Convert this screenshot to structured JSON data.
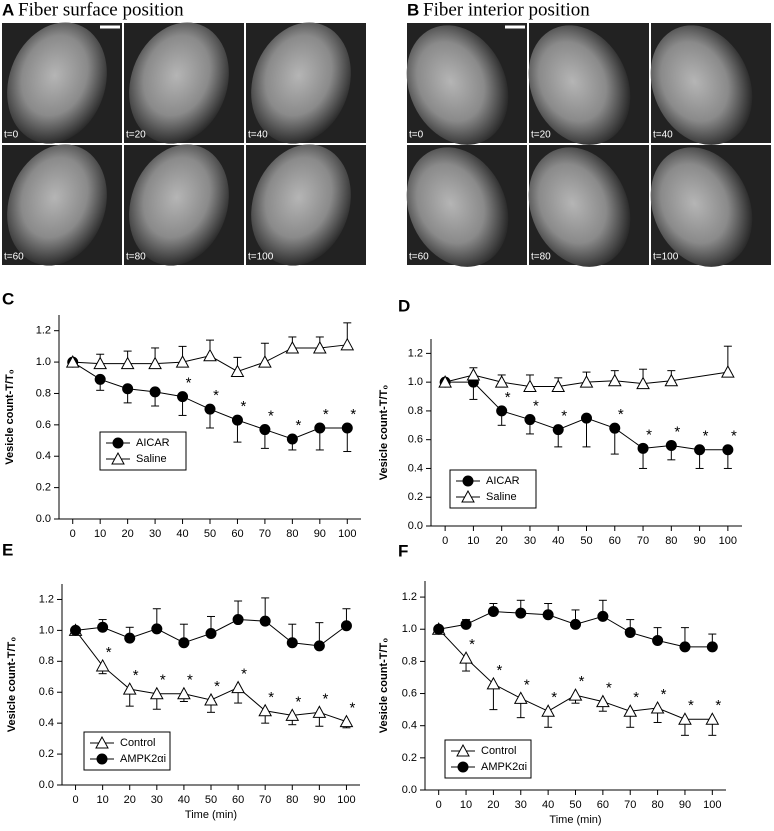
{
  "image_panels": [
    {
      "label": "A",
      "title": "Fiber surface position",
      "frames": [
        "t=0",
        "t=20",
        "t=40",
        "t=60",
        "t=80",
        "t=100"
      ]
    },
    {
      "label": "B",
      "title": "Fiber interior position",
      "frames": [
        "t=0",
        "t=20",
        "t=40",
        "t=60",
        "t=80",
        "t=100"
      ]
    }
  ],
  "chart_data": [
    {
      "type": "line",
      "panel": "C",
      "ylabel": "Vesicle count-T/T₀",
      "legend": "lower left",
      "sig_label": "*",
      "x": [
        0,
        10,
        20,
        30,
        40,
        50,
        60,
        70,
        80,
        90,
        100
      ],
      "xlim": [
        -5,
        105
      ],
      "xticks": [
        0,
        10,
        20,
        30,
        40,
        50,
        60,
        70,
        80,
        90,
        100
      ],
      "ylim": [
        0,
        1.3
      ],
      "yticks": [
        {
          "value": 0,
          "label": "0.0"
        },
        {
          "value": 0.2,
          "label": "0.2"
        },
        {
          "value": 0.4,
          "label": "0.4"
        },
        {
          "value": 0.6,
          "label": "0.6"
        },
        {
          "value": 0.8,
          "label": "0.8"
        },
        {
          "value": 1,
          "label": "1.0"
        },
        {
          "value": 1.2,
          "label": "1.2"
        }
      ],
      "series": [
        {
          "name": "AICAR",
          "color": "#000000",
          "marker": "circle",
          "marker_fill": "#000000",
          "error_direction": "down",
          "values": [
            1.0,
            0.89,
            0.83,
            0.81,
            0.78,
            0.7,
            0.63,
            0.57,
            0.51,
            0.58,
            0.58
          ],
          "errors": [
            0,
            0.07,
            0.09,
            0.09,
            0.12,
            0.12,
            0.14,
            0.12,
            0.07,
            0.14,
            0.15
          ],
          "significant_x": [
            40,
            50,
            60,
            70,
            80,
            90,
            100
          ]
        },
        {
          "name": "Saline",
          "color": "#000000",
          "marker": "triangle",
          "marker_fill": "#ffffff",
          "error_direction": "up",
          "values": [
            1.0,
            0.99,
            0.99,
            0.99,
            1.0,
            1.04,
            0.94,
            1.0,
            1.09,
            1.09,
            1.11
          ],
          "errors": [
            0.02,
            0.06,
            0.08,
            0.1,
            0.1,
            0.1,
            0.09,
            0.12,
            0.07,
            0.07,
            0.14
          ]
        }
      ]
    },
    {
      "type": "line",
      "panel": "D",
      "ylabel": "Vesicle count-T/T₀",
      "legend": "lower left",
      "sig_label": "*",
      "x": [
        0,
        10,
        20,
        30,
        40,
        50,
        60,
        70,
        80,
        90,
        100
      ],
      "xlim": [
        -5,
        105
      ],
      "xticks": [
        0,
        10,
        20,
        30,
        40,
        50,
        60,
        70,
        80,
        90,
        100
      ],
      "ylim": [
        0,
        1.3
      ],
      "yticks": [
        {
          "value": 0,
          "label": "0.0"
        },
        {
          "value": 0.2,
          "label": "0.2"
        },
        {
          "value": 0.4,
          "label": "0.4"
        },
        {
          "value": 0.6,
          "label": "0.6"
        },
        {
          "value": 0.8,
          "label": "0.8"
        },
        {
          "value": 1,
          "label": "1.0"
        },
        {
          "value": 1.2,
          "label": "1.2"
        }
      ],
      "series": [
        {
          "name": "AICAR",
          "color": "#000000",
          "marker": "circle",
          "marker_fill": "#000000",
          "error_direction": "down",
          "values": [
            1.0,
            1.0,
            0.8,
            0.74,
            0.67,
            0.75,
            0.68,
            0.54,
            0.56,
            0.53,
            0.53
          ],
          "errors": [
            0,
            0.12,
            0.1,
            0.1,
            0.12,
            0.2,
            0.18,
            0.14,
            0.1,
            0.13,
            0.13
          ],
          "significant_x": [
            20,
            30,
            40,
            60,
            70,
            80,
            90,
            100
          ]
        },
        {
          "name": "Saline",
          "color": "#000000",
          "marker": "triangle",
          "marker_fill": "#ffffff",
          "error_direction": "up",
          "x": [
            0,
            10,
            20,
            30,
            40,
            50,
            60,
            70,
            80,
            100
          ],
          "values": [
            1.0,
            1.05,
            1.0,
            0.97,
            0.97,
            1.0,
            1.01,
            0.99,
            1.01,
            1.07
          ],
          "errors": [
            0.02,
            0.05,
            0.05,
            0.08,
            0.06,
            0.07,
            0.07,
            0.1,
            0.07,
            0.18
          ]
        }
      ]
    },
    {
      "type": "line",
      "panel": "E",
      "ylabel": "Vesicle count-T/T₀",
      "xlabel": "Time (min)",
      "legend": "lower left",
      "sig_label": "*",
      "x": [
        0,
        10,
        20,
        30,
        40,
        50,
        60,
        70,
        80,
        90,
        100
      ],
      "xlim": [
        -5,
        105
      ],
      "xticks": [
        0,
        10,
        20,
        30,
        40,
        50,
        60,
        70,
        80,
        90,
        100
      ],
      "ylim": [
        0,
        1.3
      ],
      "yticks": [
        {
          "value": 0,
          "label": "0.0"
        },
        {
          "value": 0.2,
          "label": "0.2"
        },
        {
          "value": 0.4,
          "label": "0.4"
        },
        {
          "value": 0.6,
          "label": "0.6"
        },
        {
          "value": 0.8,
          "label": "0.8"
        },
        {
          "value": 1,
          "label": "1.0"
        },
        {
          "value": 1.2,
          "label": "1.2"
        }
      ],
      "series": [
        {
          "name": "Control",
          "color": "#000000",
          "marker": "triangle",
          "marker_fill": "#ffffff",
          "error_direction": "down",
          "values": [
            1.0,
            0.77,
            0.62,
            0.59,
            0.59,
            0.55,
            0.63,
            0.48,
            0.45,
            0.47,
            0.41
          ],
          "errors": [
            0,
            0.05,
            0.11,
            0.1,
            0.05,
            0.08,
            0.1,
            0.08,
            0.06,
            0.09,
            0.04
          ],
          "significant_x": [
            10,
            20,
            30,
            40,
            50,
            60,
            70,
            80,
            90,
            100
          ]
        },
        {
          "name": "AMPK2αi",
          "color": "#000000",
          "marker": "circle",
          "marker_fill": "#000000",
          "error_direction": "up",
          "values": [
            1.0,
            1.02,
            0.95,
            1.01,
            0.92,
            0.98,
            1.07,
            1.06,
            0.92,
            0.9,
            1.03
          ],
          "errors": [
            0.01,
            0.05,
            0.07,
            0.13,
            0.12,
            0.11,
            0.12,
            0.15,
            0.12,
            0.15,
            0.11
          ]
        }
      ]
    },
    {
      "type": "line",
      "panel": "F",
      "ylabel": "Vesicle count-T/T₀",
      "xlabel": "Time (min)",
      "legend": "lower left",
      "sig_label": "*",
      "x": [
        0,
        10,
        20,
        30,
        40,
        50,
        60,
        70,
        80,
        90,
        100
      ],
      "xlim": [
        -5,
        105
      ],
      "xticks": [
        0,
        10,
        20,
        30,
        40,
        50,
        60,
        70,
        80,
        90,
        100
      ],
      "ylim": [
        0,
        1.3
      ],
      "yticks": [
        {
          "value": 0,
          "label": "0.0"
        },
        {
          "value": 0.2,
          "label": "0.2"
        },
        {
          "value": 0.4,
          "label": "0.4"
        },
        {
          "value": 0.6,
          "label": "0.6"
        },
        {
          "value": 0.8,
          "label": "0.8"
        },
        {
          "value": 1,
          "label": "1.0"
        },
        {
          "value": 1.2,
          "label": "1.2"
        }
      ],
      "series": [
        {
          "name": "Control",
          "color": "#000000",
          "marker": "triangle",
          "marker_fill": "#ffffff",
          "error_direction": "down",
          "values": [
            1.0,
            0.82,
            0.66,
            0.57,
            0.49,
            0.59,
            0.55,
            0.49,
            0.51,
            0.44,
            0.44
          ],
          "errors": [
            0,
            0.08,
            0.16,
            0.12,
            0.1,
            0.05,
            0.06,
            0.1,
            0.09,
            0.1,
            0.1
          ],
          "significant_x": [
            10,
            20,
            30,
            40,
            50,
            60,
            70,
            80,
            90,
            100
          ]
        },
        {
          "name": "AMPK2αi",
          "color": "#000000",
          "marker": "circle",
          "marker_fill": "#000000",
          "error_direction": "up",
          "values": [
            1.0,
            1.03,
            1.11,
            1.1,
            1.09,
            1.03,
            1.08,
            0.98,
            0.93,
            0.89,
            0.89
          ],
          "errors": [
            0.02,
            0.03,
            0.05,
            0.08,
            0.07,
            0.09,
            0.1,
            0.08,
            0.08,
            0.12,
            0.08
          ]
        }
      ]
    }
  ]
}
